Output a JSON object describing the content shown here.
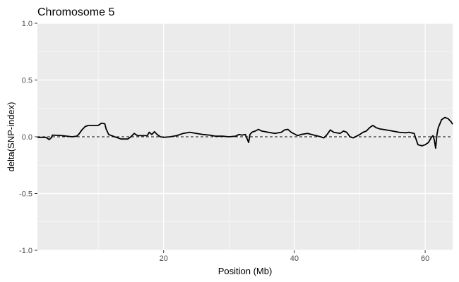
{
  "chart_data": {
    "type": "line",
    "title": "Chromosome 5",
    "xlabel": "Position (Mb)",
    "ylabel": "delta(SNP-index)",
    "xlim": [
      0.7,
      64.2
    ],
    "ylim": [
      -1.0,
      1.0
    ],
    "x_ticks": [
      20,
      40,
      60
    ],
    "x_tick_labels": [
      "20",
      "40",
      "60"
    ],
    "y_ticks": [
      -1.0,
      -0.5,
      0.0,
      0.5,
      1.0
    ],
    "y_tick_labels": [
      "-1.0",
      "-0.5",
      "0.0",
      "0.5",
      "1.0"
    ],
    "grid": true,
    "panel_background": "#ebebeb",
    "grid_color": "#ffffff",
    "line_color": "#000000",
    "reference_line": {
      "y": 0.0,
      "style": "dashed",
      "color": "#000000"
    },
    "series": [
      {
        "points": [
          [
            0.7,
            -0.005
          ],
          [
            2.0,
            -0.005
          ],
          [
            2.5,
            -0.025
          ],
          [
            2.8,
            -0.01
          ],
          [
            3.0,
            0.015
          ],
          [
            4.5,
            0.01
          ],
          [
            6.0,
            0.0
          ],
          [
            6.7,
            0.005
          ],
          [
            7.0,
            0.02
          ],
          [
            7.5,
            0.06
          ],
          [
            8.0,
            0.09
          ],
          [
            8.5,
            0.1
          ],
          [
            9.0,
            0.1
          ],
          [
            10.0,
            0.1
          ],
          [
            10.5,
            0.12
          ],
          [
            11.0,
            0.115
          ],
          [
            11.2,
            0.07
          ],
          [
            11.6,
            0.02
          ],
          [
            12.5,
            0.0
          ],
          [
            13.5,
            -0.02
          ],
          [
            14.5,
            -0.02
          ],
          [
            15.0,
            0.0
          ],
          [
            15.5,
            0.03
          ],
          [
            16.0,
            0.01
          ],
          [
            17.5,
            0.01
          ],
          [
            17.8,
            0.04
          ],
          [
            18.2,
            0.02
          ],
          [
            18.6,
            0.045
          ],
          [
            19.0,
            0.02
          ],
          [
            19.5,
            0.0
          ],
          [
            20.0,
            -0.005
          ],
          [
            21.0,
            0.0
          ],
          [
            22.0,
            0.01
          ],
          [
            23.0,
            0.03
          ],
          [
            24.0,
            0.04
          ],
          [
            25.0,
            0.03
          ],
          [
            26.0,
            0.02
          ],
          [
            27.0,
            0.015
          ],
          [
            28.0,
            0.005
          ],
          [
            29.0,
            0.005
          ],
          [
            30.0,
            0.0
          ],
          [
            31.0,
            0.005
          ],
          [
            31.5,
            0.02
          ],
          [
            32.0,
            0.015
          ],
          [
            32.5,
            0.02
          ],
          [
            33.0,
            -0.05
          ],
          [
            33.2,
            0.02
          ],
          [
            33.5,
            0.04
          ],
          [
            34.0,
            0.05
          ],
          [
            34.5,
            0.065
          ],
          [
            35.0,
            0.05
          ],
          [
            36.0,
            0.04
          ],
          [
            37.0,
            0.03
          ],
          [
            38.0,
            0.04
          ],
          [
            38.5,
            0.06
          ],
          [
            39.0,
            0.065
          ],
          [
            39.5,
            0.04
          ],
          [
            40.0,
            0.025
          ],
          [
            40.5,
            0.01
          ],
          [
            41.0,
            0.02
          ],
          [
            42.0,
            0.03
          ],
          [
            43.0,
            0.015
          ],
          [
            44.0,
            0.0
          ],
          [
            44.5,
            -0.01
          ],
          [
            45.0,
            0.02
          ],
          [
            45.5,
            0.06
          ],
          [
            46.0,
            0.04
          ],
          [
            47.0,
            0.03
          ],
          [
            47.5,
            0.05
          ],
          [
            48.0,
            0.04
          ],
          [
            48.5,
            0.0
          ],
          [
            49.0,
            -0.01
          ],
          [
            49.5,
            0.005
          ],
          [
            50.0,
            0.02
          ],
          [
            50.5,
            0.04
          ],
          [
            51.0,
            0.05
          ],
          [
            51.5,
            0.08
          ],
          [
            52.0,
            0.1
          ],
          [
            52.5,
            0.08
          ],
          [
            53.0,
            0.07
          ],
          [
            54.0,
            0.06
          ],
          [
            55.0,
            0.05
          ],
          [
            56.0,
            0.04
          ],
          [
            57.0,
            0.035
          ],
          [
            57.5,
            0.04
          ],
          [
            58.3,
            0.03
          ],
          [
            58.6,
            -0.02
          ],
          [
            58.9,
            -0.07
          ],
          [
            59.5,
            -0.08
          ],
          [
            60.0,
            -0.07
          ],
          [
            60.5,
            -0.05
          ],
          [
            61.0,
            0.0
          ],
          [
            61.2,
            0.01
          ],
          [
            61.4,
            -0.03
          ],
          [
            61.6,
            -0.1
          ],
          [
            61.8,
            0.02
          ],
          [
            62.0,
            0.08
          ],
          [
            62.5,
            0.15
          ],
          [
            63.0,
            0.17
          ],
          [
            63.5,
            0.16
          ],
          [
            64.0,
            0.13
          ],
          [
            64.2,
            0.11
          ]
        ]
      }
    ]
  }
}
